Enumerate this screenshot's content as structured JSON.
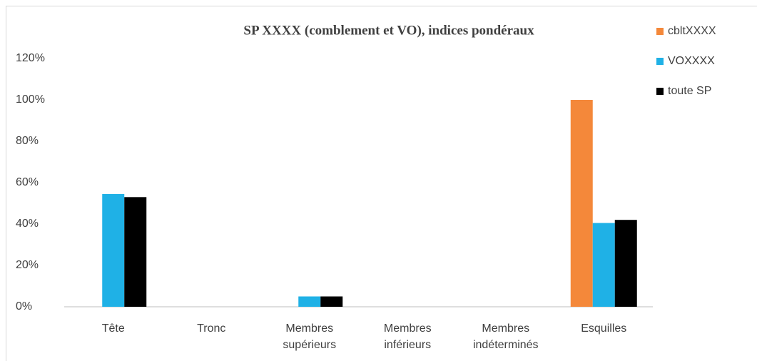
{
  "chart_data": {
    "type": "bar",
    "title": "SP XXXX (comblement et VO), indices pondéraux",
    "categories": [
      "Tête",
      "Tronc",
      "Membres supérieurs",
      "Membres inférieurs",
      "Membres indéterminés",
      "Esquilles"
    ],
    "series": [
      {
        "name": "cbltXXXX",
        "color": "#f4883a",
        "values": [
          0,
          0,
          0,
          0,
          0,
          100
        ]
      },
      {
        "name": "VOXXXX",
        "color": "#1fb1e6",
        "values": [
          54.5,
          0,
          5,
          0,
          0,
          40.5
        ]
      },
      {
        "name": "toute SP",
        "color": "#000000",
        "values": [
          53,
          0,
          5,
          0,
          0,
          42
        ]
      }
    ],
    "ylim": [
      0,
      120
    ],
    "yticks": [
      {
        "value": 0,
        "label": "0%"
      },
      {
        "value": 20,
        "label": "20%"
      },
      {
        "value": 40,
        "label": "40%"
      },
      {
        "value": 60,
        "label": "60%"
      },
      {
        "value": 80,
        "label": "80%"
      },
      {
        "value": 100,
        "label": "100%"
      },
      {
        "value": 120,
        "label": "120%"
      }
    ],
    "grid": false,
    "legend": "right"
  }
}
